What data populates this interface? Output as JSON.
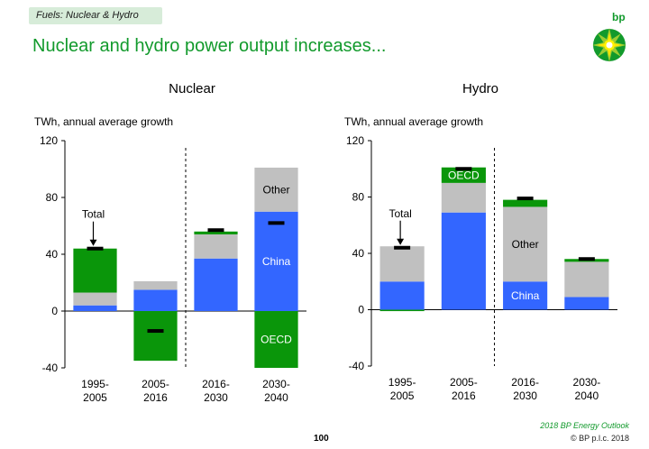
{
  "header": {
    "tag": "Fuels: Nuclear & Hydro",
    "title": "Nuclear and hydro power output increases...",
    "logo_text": "bp"
  },
  "footer": {
    "outlook": "2018 BP Energy Outlook",
    "copyright": "© BP p.l.c. 2018",
    "page": "100"
  },
  "colors": {
    "china": "#3366ff",
    "other": "#c0c0c0",
    "oecd": "#0a960a",
    "total_marker": "#000000",
    "accent": "#129a2c"
  },
  "chart_data": [
    {
      "type": "bar",
      "stacked": true,
      "title": "Nuclear",
      "ylabel": "TWh, annual average growth",
      "ylim": [
        -40,
        120
      ],
      "yticks": [
        -40,
        0,
        40,
        80,
        120
      ],
      "categories": [
        "1995-\n2005",
        "2005-\n2016",
        "2016-\n2030",
        "2030-\n2040"
      ],
      "series": [
        {
          "name": "China",
          "color_key": "china",
          "values": [
            4,
            15,
            37,
            70
          ]
        },
        {
          "name": "Other",
          "color_key": "other",
          "values": [
            9,
            6,
            17,
            31
          ]
        },
        {
          "name": "OECD",
          "color_key": "oecd",
          "values": [
            31,
            -35,
            2,
            -40
          ]
        }
      ],
      "totals": [
        44,
        -14,
        57,
        62
      ],
      "separator_after_index": 1,
      "annotations": [
        {
          "text": "Total",
          "category_index": 0,
          "arrow_to_total": true
        },
        {
          "text": "Other",
          "category_index": 3,
          "series": "Other"
        },
        {
          "text": "China",
          "category_index": 3,
          "series": "China"
        },
        {
          "text": "OECD",
          "category_index": 3,
          "series": "OECD"
        }
      ]
    },
    {
      "type": "bar",
      "stacked": true,
      "title": "Hydro",
      "ylabel": "TWh, annual average growth",
      "ylim": [
        -40,
        120
      ],
      "yticks": [
        -40,
        0,
        40,
        80,
        120
      ],
      "categories": [
        "1995-\n2005",
        "2005-\n2016",
        "2016-\n2030",
        "2030-\n2040"
      ],
      "series": [
        {
          "name": "China",
          "color_key": "china",
          "values": [
            20,
            69,
            20,
            9
          ]
        },
        {
          "name": "Other",
          "color_key": "other",
          "values": [
            25,
            21,
            53,
            25
          ]
        },
        {
          "name": "OECD",
          "color_key": "oecd",
          "values": [
            -1,
            11,
            5,
            2
          ]
        }
      ],
      "totals": [
        44,
        100,
        79,
        36
      ],
      "separator_after_index": 1,
      "annotations": [
        {
          "text": "Total",
          "category_index": 0,
          "arrow_to_total": true
        },
        {
          "text": "OECD",
          "category_index": 1,
          "series": "OECD"
        },
        {
          "text": "Other",
          "category_index": 2,
          "series": "Other"
        },
        {
          "text": "China",
          "category_index": 2,
          "series": "China"
        }
      ]
    }
  ]
}
